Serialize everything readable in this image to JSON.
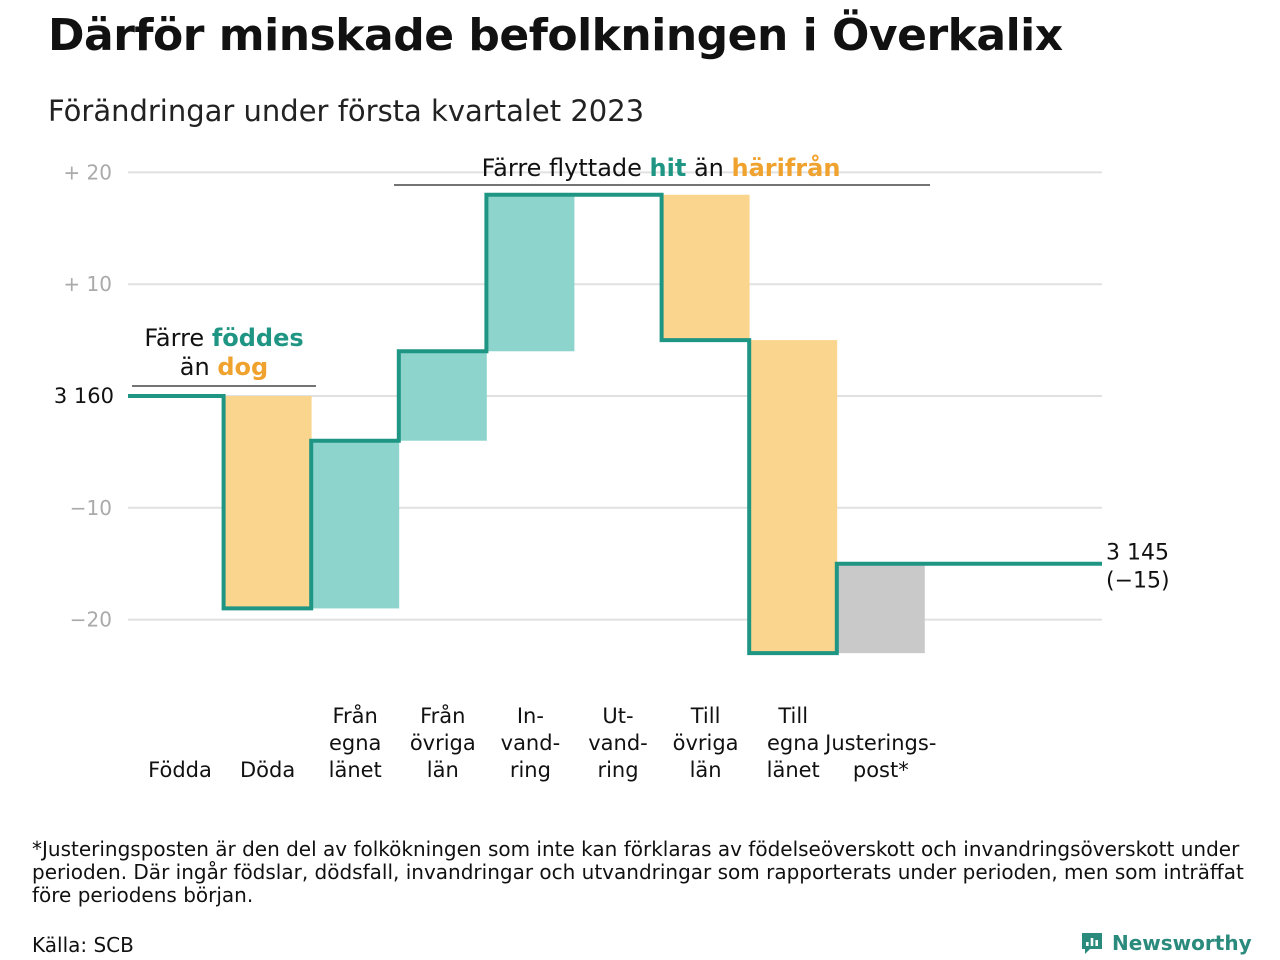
{
  "title": "Därför minskade befolkningen i Överkalix",
  "subtitle": "Förändringar under första kvartalet 2023",
  "colors": {
    "line": "#1f9584",
    "increase": "#8dd5cc",
    "decrease": "#fad58e",
    "adjustment": "#c9c9c9",
    "teal_text": "#1f9584",
    "orange_text": "#f0a22e",
    "grid": "#e1e1e1",
    "tick": "#aaaaaa"
  },
  "chart_data": {
    "type": "waterfall",
    "start_value": 3160,
    "start_label": "3 160",
    "end_value": 3145,
    "end_label": "3 145",
    "end_change_label": "(−15)",
    "y_relative_range": [
      -25,
      20
    ],
    "y_ticks": [
      {
        "value": 20,
        "label": "+ 20"
      },
      {
        "value": 10,
        "label": "+ 10"
      },
      {
        "value": -10,
        "label": "−10"
      },
      {
        "value": -20,
        "label": "−20"
      }
    ],
    "grid": true,
    "steps": [
      {
        "label_lines": [
          "Födda"
        ],
        "change": 0,
        "kind": "increase"
      },
      {
        "label_lines": [
          "Döda"
        ],
        "change": -19,
        "kind": "decrease"
      },
      {
        "label_lines": [
          "Från",
          "egna",
          "länet"
        ],
        "change": 15,
        "kind": "increase"
      },
      {
        "label_lines": [
          "Från",
          "övriga",
          "län"
        ],
        "change": 8,
        "kind": "increase"
      },
      {
        "label_lines": [
          "In-",
          "vand-",
          "ring"
        ],
        "change": 14,
        "kind": "increase"
      },
      {
        "label_lines": [
          "Ut-",
          "vand-",
          "ring"
        ],
        "change": 0,
        "kind": "decrease"
      },
      {
        "label_lines": [
          "Till",
          "övriga",
          "län"
        ],
        "change": -13,
        "kind": "decrease"
      },
      {
        "label_lines": [
          "Till",
          "egna",
          "länet"
        ],
        "change": -28,
        "kind": "decrease"
      },
      {
        "label_lines": [
          "Justerings-",
          "post*"
        ],
        "change": 8,
        "kind": "adjustment"
      }
    ],
    "annotations": [
      {
        "lines": [
          [
            {
              "text": "Färre ",
              "color": "plain"
            },
            {
              "text": "föddes",
              "color": "teal"
            }
          ],
          [
            {
              "text": "än ",
              "color": "plain"
            },
            {
              "text": "dog",
              "color": "orange"
            }
          ]
        ]
      },
      {
        "lines": [
          [
            {
              "text": "Färre flyttade ",
              "color": "plain"
            },
            {
              "text": "hit",
              "color": "teal"
            },
            {
              "text": " än ",
              "color": "plain"
            },
            {
              "text": "härifrån",
              "color": "orange"
            }
          ]
        ]
      }
    ]
  },
  "footnote": "*Justeringsposten är den del av folkökningen som inte kan förklaras av födelseöverskott och invandringsöverskott under perioden. Där ingår födslar, dödsfall, invandringar och utvandringar som rapporterats under perioden, men som inträffat före periodens början.",
  "source": "Källa: SCB",
  "brand": "Newsworthy"
}
